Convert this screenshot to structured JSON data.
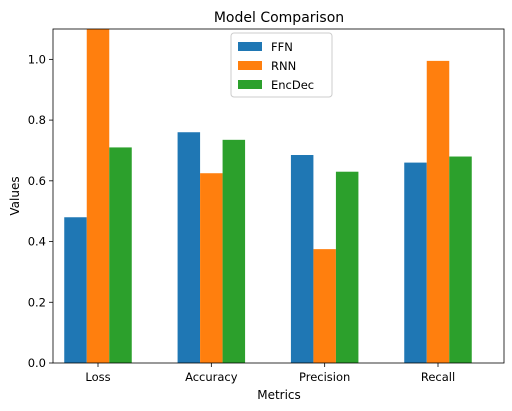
{
  "chart_data": {
    "type": "bar",
    "title": "Model Comparison",
    "xlabel": "Metrics",
    "ylabel": "Values",
    "categories": [
      "Loss",
      "Accuracy",
      "Precision",
      "Recall"
    ],
    "series": [
      {
        "name": "FFN",
        "color": "#1f77b4",
        "values": [
          0.48,
          0.76,
          0.685,
          0.66
        ]
      },
      {
        "name": "RNN",
        "color": "#ff7f0e",
        "values": [
          1.1,
          0.625,
          0.375,
          0.995
        ]
      },
      {
        "name": "EncDec",
        "color": "#2ca02c",
        "values": [
          0.71,
          0.735,
          0.63,
          0.68
        ]
      }
    ],
    "ylim": [
      0,
      1.1
    ],
    "yticks": [
      "0.0",
      "0.2",
      "0.4",
      "0.6",
      "0.8",
      "1.0"
    ],
    "grid": false,
    "legend_position": "top-center"
  }
}
